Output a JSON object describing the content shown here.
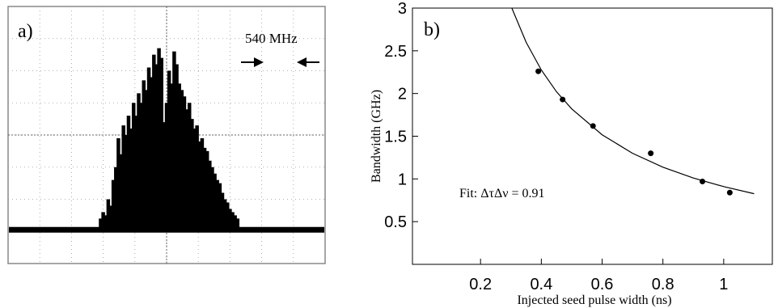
{
  "chart_data": [
    {
      "type": "spectrum",
      "label": "a)",
      "annotation": "540 MHz",
      "color": "#000000",
      "xlim": [
        0,
        10
      ],
      "ylim": [
        0,
        8
      ],
      "baseline": 1.05,
      "x": [
        2.92,
        3.0,
        3.08,
        3.16,
        3.24,
        3.32,
        3.4,
        3.48,
        3.56,
        3.64,
        3.72,
        3.8,
        3.88,
        3.96,
        4.04,
        4.12,
        4.2,
        4.28,
        4.36,
        4.44,
        4.52,
        4.6,
        4.68,
        4.76,
        4.84,
        4.92,
        5.0,
        5.08,
        5.16,
        5.24,
        5.32,
        5.4,
        5.48,
        5.56,
        5.64,
        5.72,
        5.8,
        5.88,
        5.96,
        6.04,
        6.12,
        6.2,
        6.28,
        6.36,
        6.44,
        6.52,
        6.6,
        6.68,
        6.76,
        6.84,
        6.92,
        7.0,
        7.08,
        7.16,
        7.24
      ],
      "values": [
        1.4,
        1.6,
        1.5,
        2.0,
        1.8,
        2.6,
        3.0,
        3.9,
        3.4,
        4.3,
        4.0,
        4.6,
        4.2,
        5.0,
        4.6,
        5.3,
        5.0,
        5.7,
        5.4,
        6.1,
        5.8,
        6.5,
        6.2,
        6.7,
        6.4,
        4.4,
        5.0,
        6.0,
        5.6,
        6.6,
        6.2,
        5.6,
        5.4,
        5.2,
        4.8,
        5.0,
        4.5,
        4.2,
        4.3,
        3.8,
        3.9,
        3.6,
        3.5,
        3.2,
        3.0,
        2.8,
        2.6,
        2.5,
        2.2,
        2.0,
        1.9,
        1.7,
        1.6,
        1.5,
        1.4
      ]
    },
    {
      "type": "scatter",
      "label": "b)",
      "annotation": "Fit: ΔτΔν = 0.91",
      "xlabel": "Injected seed pulse width (ns)",
      "ylabel": "Bandwidth (GHz)",
      "xlim": [
        -0.024,
        1.16
      ],
      "ylim": [
        0,
        3
      ],
      "xticks": [
        0.2,
        0.4,
        0.6,
        0.8,
        1
      ],
      "yticks": [
        0.5,
        1,
        1.5,
        2,
        2.5,
        3
      ],
      "series": [
        {
          "mode": "markers",
          "color": "#000000",
          "x": [
            0.39,
            0.47,
            0.57,
            0.76,
            0.93,
            1.02
          ],
          "values": [
            2.26,
            1.93,
            1.62,
            1.3,
            0.97,
            0.84
          ]
        },
        {
          "mode": "line",
          "color": "#000000",
          "x": [
            0.303,
            0.35,
            0.4,
            0.45,
            0.5,
            0.6,
            0.7,
            0.8,
            0.9,
            1.0,
            1.1
          ],
          "values": [
            3.0,
            2.6,
            2.275,
            2.02,
            1.82,
            1.517,
            1.3,
            1.1375,
            1.011,
            0.91,
            0.827
          ]
        }
      ]
    }
  ]
}
